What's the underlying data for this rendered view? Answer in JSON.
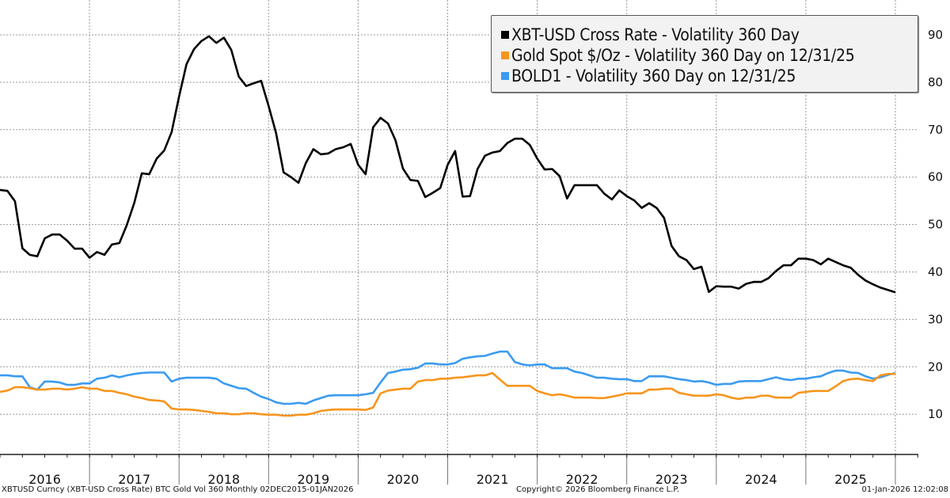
{
  "chart_data": {
    "type": "line",
    "title": "",
    "xlabel": "",
    "ylabel": "",
    "y_axis_side": "right",
    "ylim": [
      0,
      95
    ],
    "yticks": [
      10,
      20,
      30,
      40,
      50,
      60,
      70,
      80,
      90
    ],
    "x_start": "2016-01",
    "x_end": "2026-01",
    "frequency": "monthly",
    "year_labels": [
      "2016",
      "2017",
      "2018",
      "2019",
      "2020",
      "2021",
      "2022",
      "2023",
      "2024",
      "2025"
    ],
    "grid": true,
    "legend_position": "top-right",
    "series": [
      {
        "name": "XBT-USD Cross Rate - Volatility 360 Day",
        "color": "#000000",
        "values": [
          57.3,
          57.1,
          54.9,
          45,
          43.6,
          43.3,
          47.1,
          47.9,
          47.9,
          46.6,
          44.9,
          44.9,
          43,
          44.2,
          43.6,
          45.8,
          46.1,
          49.9,
          54.6,
          60.8,
          60.6,
          63.9,
          65.6,
          69.5,
          77,
          83.8,
          87,
          88.7,
          89.7,
          88.3,
          89.4,
          86.8,
          81.2,
          79.2,
          79.8,
          80.3,
          75,
          69.3,
          61,
          60,
          58.8,
          63,
          65.9,
          64.8,
          65,
          65.9,
          66.3,
          67,
          62.6,
          60.6,
          70.5,
          72.5,
          71.3,
          67.8,
          61.8,
          59.4,
          59.2,
          55.8,
          56.7,
          57.7,
          62.6,
          65.5,
          55.9,
          56,
          61.7,
          64.5,
          65.2,
          65.5,
          67.2,
          68.1,
          68.1,
          66.8,
          63.9,
          61.6,
          61.7,
          60.2,
          55.5,
          58.3,
          58.3,
          58.3,
          58.3,
          56.5,
          55.3,
          57.2,
          56,
          55.1,
          53.5,
          54.5,
          53.5,
          51.4,
          45.5,
          43.3,
          42.5,
          40.6,
          41.1,
          35.8,
          37,
          36.9,
          36.9,
          36.5,
          37.5,
          37.9,
          37.9,
          38.7,
          40.2,
          41.4,
          41.4,
          42.8,
          42.8,
          42.5,
          41.6,
          42.8,
          42.1,
          41.4,
          40.9,
          39.4,
          38.2,
          37.4,
          36.7,
          36.2,
          35.7
        ]
      },
      {
        "name": "Gold Spot $/Oz - Volatility 360 Day on 12/31/25",
        "color": "#f7951d",
        "values": [
          14.7,
          15,
          15.7,
          15.7,
          15.5,
          15.2,
          15.2,
          15.4,
          15.4,
          15.2,
          15.4,
          15.7,
          15.4,
          15.4,
          14.9,
          14.9,
          14.5,
          14.2,
          13.7,
          13.4,
          13,
          12.9,
          12.7,
          11.2,
          11,
          11,
          10.9,
          10.7,
          10.5,
          10.2,
          10.2,
          10,
          10,
          10.2,
          10.2,
          10,
          9.9,
          9.9,
          9.7,
          9.7,
          9.9,
          9.9,
          10.2,
          10.7,
          10.9,
          11,
          11,
          11,
          11,
          10.9,
          11.4,
          14.4,
          15,
          15.2,
          15.4,
          15.4,
          16.9,
          17.2,
          17.2,
          17.5,
          17.5,
          17.7,
          17.8,
          18,
          18.2,
          18.2,
          18.7,
          17.3,
          16,
          16,
          16,
          16,
          14.9,
          14.4,
          14,
          14.2,
          13.9,
          13.5,
          13.5,
          13.5,
          13.4,
          13.4,
          13.7,
          14,
          14.4,
          14.4,
          14.4,
          15.2,
          15.2,
          15.4,
          15.4,
          14.5,
          14.2,
          13.9,
          13.9,
          13.9,
          14.2,
          14,
          13.5,
          13.2,
          13.5,
          13.5,
          13.9,
          13.9,
          13.5,
          13.5,
          13.5,
          14.5,
          14.7,
          14.9,
          14.9,
          14.9,
          15.9,
          17,
          17.4,
          17.5,
          17.2,
          17,
          18.2,
          18.5,
          18.5
        ]
      },
      {
        "name": "BOLD1 - Volatility 360 Day on 12/31/25",
        "color": "#3a9bf0",
        "values": [
          18.2,
          18.2,
          18,
          18,
          15.7,
          15.2,
          16.9,
          16.9,
          16.7,
          16.2,
          16.2,
          16.5,
          16.5,
          17.5,
          17.7,
          18.2,
          17.8,
          18.2,
          18.5,
          18.7,
          18.8,
          18.8,
          18.8,
          16.9,
          17.5,
          17.7,
          17.7,
          17.7,
          17.7,
          17.5,
          16.5,
          16,
          15.5,
          15.4,
          14.5,
          13.7,
          13.2,
          12.5,
          12.2,
          12.2,
          12.4,
          12.2,
          12.9,
          13.4,
          13.9,
          14,
          14,
          14,
          14,
          14.2,
          14.5,
          16.7,
          18.7,
          19,
          19.4,
          19.5,
          19.8,
          20.7,
          20.7,
          20.5,
          20.5,
          20.8,
          21.7,
          22,
          22.2,
          22.3,
          22.8,
          23.2,
          23.2,
          21,
          20.5,
          20.3,
          20.5,
          20.5,
          19.7,
          19.7,
          19.7,
          19,
          18.7,
          18.2,
          17.7,
          17.7,
          17.5,
          17.4,
          17.4,
          17,
          17,
          18,
          18,
          18,
          17.7,
          17.4,
          17.2,
          16.9,
          17,
          16.7,
          16.2,
          16.4,
          16.4,
          16.9,
          17,
          17,
          17,
          17.4,
          17.8,
          17.4,
          17.2,
          17.5,
          17.5,
          17.8,
          18,
          18.7,
          19.2,
          19.2,
          18.8,
          18.7,
          18,
          17.5,
          17.8,
          18.3,
          18.7
        ]
      }
    ]
  },
  "legend": {
    "items": [
      {
        "label": "XBT-USD Cross Rate - Volatility 360 Day",
        "color": "#000000"
      },
      {
        "label": "Gold Spot $/Oz - Volatility 360 Day on 12/31/25",
        "color": "#f7951d"
      },
      {
        "label": "BOLD1 - Volatility 360 Day on 12/31/25",
        "color": "#3a9bf0"
      }
    ]
  },
  "footer": {
    "source": "XBTUSD Curncy (XBT-USD Cross Rate) BTC Gold Vol 360 Monthly 02DEC2015-01JAN2026",
    "copyright": "Copyright© 2026 Bloomberg Finance L.P.",
    "timestamp": "01-Jan-2026 12:02:08"
  }
}
